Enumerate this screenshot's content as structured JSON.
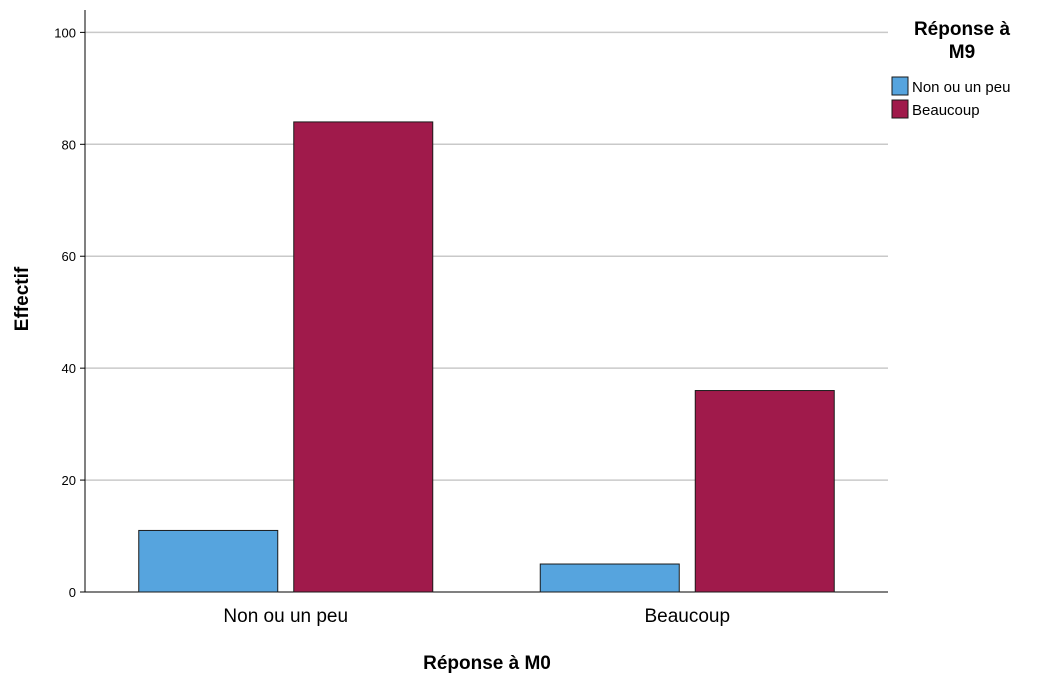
{
  "chart_data": {
    "type": "bar",
    "categories": [
      "Non ou un peu",
      "Beaucoup"
    ],
    "series": [
      {
        "name": "Non ou un peu",
        "values": [
          11,
          5
        ],
        "color": "#56a4de"
      },
      {
        "name": "Beaucoup",
        "values": [
          84,
          36
        ],
        "color": "#a01a4b"
      }
    ],
    "xlabel": "Réponse à M0",
    "ylabel": "Effectif",
    "ylim": [
      0,
      104
    ],
    "yticks": [
      0,
      20,
      40,
      60,
      80,
      100
    ],
    "grid": true,
    "legend": {
      "title_lines": [
        "Réponse à",
        "M9"
      ],
      "placement": "top-right"
    }
  }
}
